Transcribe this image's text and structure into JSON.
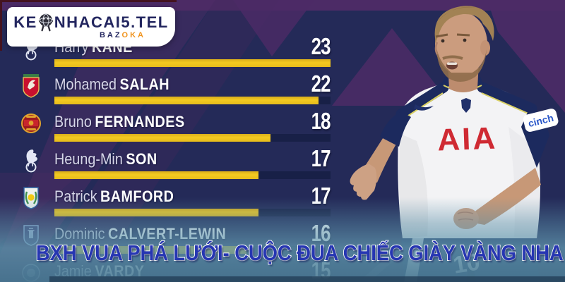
{
  "logo": {
    "brand_prefix": "KE",
    "brand_suffix": "NHACAI5.TEL",
    "mascot_icon": "globe-mascot-icon",
    "subtitle_dark": "BAZ",
    "subtitle_accent": "OKA"
  },
  "banner": {
    "text": "BXH VUA PHÁ LƯỚI- CUỘC ĐUA CHIẾC GIÀY VÀNG NHA"
  },
  "player": {
    "shirt_sponsor": "AIA",
    "sleeve_sponsor": "cinch",
    "shorts_number": "10"
  },
  "chart_data": {
    "type": "bar",
    "orientation": "horizontal",
    "title": "BXH VUA PHÁ LƯỚI- CUỘC ĐUA CHIẾC GIÀY VÀNG NHA",
    "categories": [
      "Harry KANE",
      "Mohamed SALAH",
      "Bruno FERNANDES",
      "Heung-Min SON",
      "Patrick BAMFORD",
      "Dominic CALVERT-LEWIN",
      "Jamie VARDY"
    ],
    "values": [
      23,
      22,
      18,
      17,
      17,
      16,
      15
    ],
    "xlim": [
      0,
      23
    ],
    "bar_color": "#eec51f",
    "rows": [
      {
        "first": "Harry",
        "last": "KANE",
        "club": "tottenham",
        "goals": 23
      },
      {
        "first": "Mohamed",
        "last": "SALAH",
        "club": "liverpool",
        "goals": 22
      },
      {
        "first": "Bruno",
        "last": "FERNANDES",
        "club": "man-utd",
        "goals": 18
      },
      {
        "first": "Heung-Min",
        "last": "SON",
        "club": "tottenham",
        "goals": 17
      },
      {
        "first": "Patrick",
        "last": "BAMFORD",
        "club": "leeds",
        "goals": 17
      },
      {
        "first": "Dominic",
        "last": "CALVERT-LEWIN",
        "club": "everton",
        "goals": 16
      },
      {
        "first": "Jamie",
        "last": "VARDY",
        "club": "leicester",
        "goals": 15
      }
    ]
  },
  "colors": {
    "background_navy": "#242a58",
    "stripe_purple": "#4c2b66",
    "bar_yellow": "#eec51f",
    "banner_blue": "#2636b2",
    "overlay_teal": "#4f8099",
    "logo_navy": "#23265f",
    "logo_orange": "#f0941f",
    "sponsor_red": "#cf2a33"
  }
}
